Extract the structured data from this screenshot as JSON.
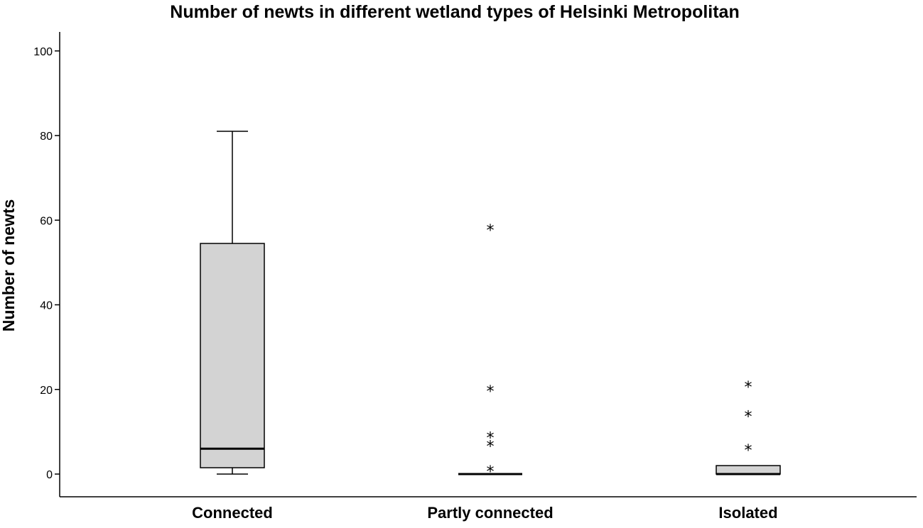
{
  "chart_data": {
    "type": "boxplot",
    "title": "Number of newts in different wetland types of Helsinki Metropolitan",
    "xlabel": "",
    "ylabel": "Number of newts",
    "ylim": [
      0,
      105
    ],
    "yticks": [
      0,
      20,
      40,
      60,
      80,
      100
    ],
    "grid": false,
    "colors": {
      "box_fill": "#d3d3d3",
      "line": "#000000",
      "background": "#ffffff"
    },
    "categories": [
      "Connected",
      "Partly connected",
      "Isolated"
    ],
    "boxes": [
      {
        "category": "Connected",
        "whisker_low": 0,
        "q1": 1.5,
        "median": 6,
        "q3": 54.5,
        "whisker_high": 81,
        "outliers": []
      },
      {
        "category": "Partly connected",
        "whisker_low": 0,
        "q1": 0,
        "median": 0,
        "q3": 0,
        "whisker_high": 0,
        "outliers": [
          1,
          7,
          9,
          20,
          58
        ]
      },
      {
        "category": "Isolated",
        "whisker_low": 0,
        "q1": 0,
        "median": 0,
        "q3": 2,
        "whisker_high": 2,
        "outliers": [
          6,
          14,
          21
        ]
      }
    ],
    "outlier_symbol": "*"
  }
}
